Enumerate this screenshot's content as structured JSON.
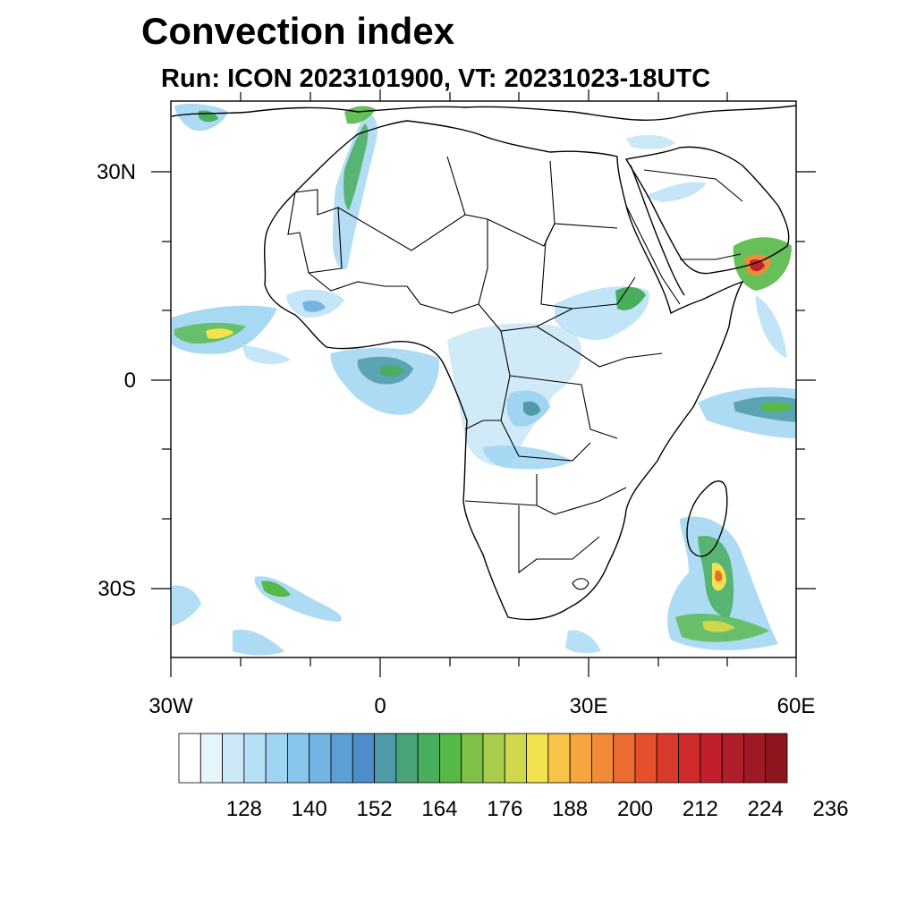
{
  "title": "Convection index",
  "subtitle": "Run: ICON 2023101900,  VT: 20231023-18UTC",
  "axes": {
    "lon_ticks": [
      "30W",
      "0",
      "30E",
      "60E"
    ],
    "lat_ticks": [
      "30N",
      "0",
      "30S"
    ]
  },
  "colorbar": {
    "labels": [
      "128",
      "140",
      "152",
      "164",
      "176",
      "188",
      "200",
      "212",
      "224",
      "236"
    ],
    "colors": [
      "#ffffff",
      "#e6f4fc",
      "#cbe8f7",
      "#b6e0f6",
      "#9fd5f2",
      "#88c6ec",
      "#74b4e2",
      "#5c9fd6",
      "#4d8ec9",
      "#4e9aa8",
      "#4aa479",
      "#48ad5c",
      "#55b847",
      "#7dc247",
      "#a8cc4d",
      "#cfd74d",
      "#f1e24e",
      "#f8c54b",
      "#f6a641",
      "#f28b38",
      "#ec6b30",
      "#e3502b",
      "#d93a2b",
      "#cf2a2c",
      "#c21f2d",
      "#b11c2a",
      "#9f1a24",
      "#8e171f"
    ]
  }
}
